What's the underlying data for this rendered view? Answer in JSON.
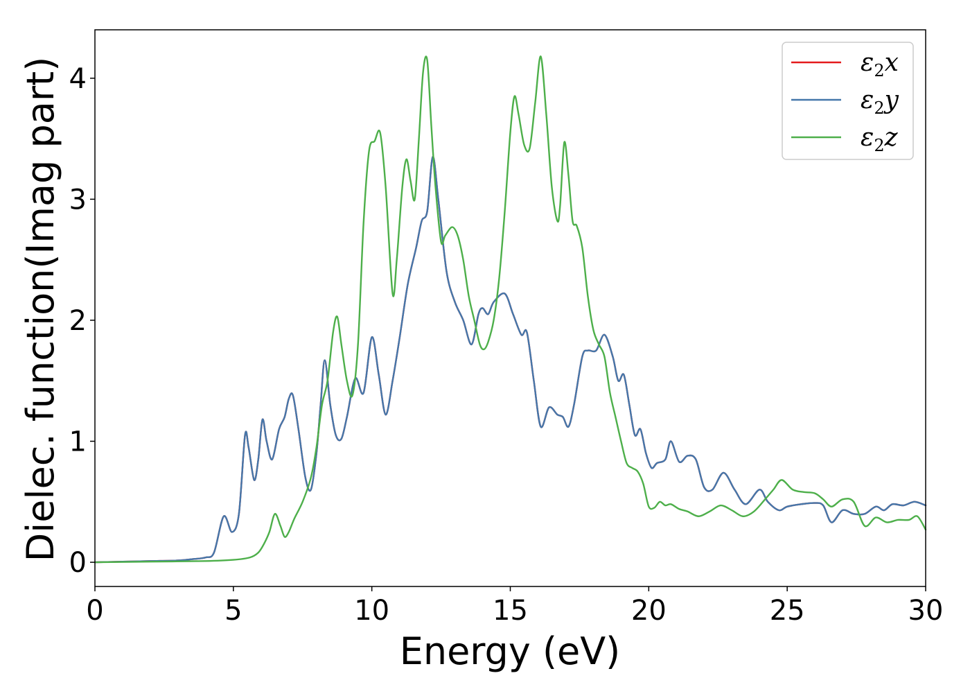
{
  "chart_data": {
    "type": "line",
    "title": "",
    "xlabel": "Energy (eV)",
    "ylabel": "Dielec. function(Imag part)",
    "xlim": [
      0,
      30
    ],
    "ylim": [
      -0.2,
      4.4
    ],
    "xticks": [
      0,
      5,
      10,
      15,
      20,
      25,
      30
    ],
    "yticks": [
      0,
      1,
      2,
      3,
      4
    ],
    "grid": false,
    "legend_position": "top-right",
    "series": [
      {
        "name": "ε2x",
        "legend_base": "ε",
        "legend_sub": "2",
        "legend_tail": "x",
        "color": "#e41a1c",
        "hidden_under": "ε2y",
        "x": [
          0,
          1,
          2,
          3,
          3.5,
          4,
          4.3,
          4.65,
          4.95,
          5.2,
          5.42,
          5.55,
          5.75,
          5.9,
          6.05,
          6.2,
          6.4,
          6.65,
          6.85,
          7.0,
          7.15,
          7.35,
          7.6,
          7.8,
          8.0,
          8.15,
          8.3,
          8.5,
          8.7,
          8.9,
          9.1,
          9.4,
          9.7,
          10.0,
          10.25,
          10.5,
          10.75,
          11.0,
          11.3,
          11.6,
          11.8,
          12.0,
          12.2,
          12.4,
          12.7,
          13.0,
          13.3,
          13.6,
          13.85,
          14.0,
          14.2,
          14.4,
          14.8,
          15.1,
          15.4,
          15.6,
          15.85,
          16.1,
          16.4,
          16.7,
          16.9,
          17.1,
          17.3,
          17.6,
          17.8,
          18.1,
          18.4,
          18.7,
          18.9,
          19.1,
          19.3,
          19.5,
          19.7,
          19.9,
          20.1,
          20.3,
          20.6,
          20.8,
          21.1,
          21.4,
          21.7,
          22.0,
          22.3,
          22.7,
          23.1,
          23.5,
          24.0,
          24.3,
          24.7,
          25.0,
          25.5,
          26.0,
          26.3,
          26.6,
          27.0,
          27.4,
          27.8,
          28.2,
          28.5,
          28.8,
          29.2,
          29.6,
          30.0
        ],
        "y": [
          0.0,
          0.005,
          0.01,
          0.015,
          0.025,
          0.04,
          0.08,
          0.38,
          0.25,
          0.4,
          1.05,
          0.95,
          0.68,
          0.85,
          1.18,
          1.0,
          0.85,
          1.1,
          1.2,
          1.35,
          1.38,
          1.1,
          0.7,
          0.6,
          0.9,
          1.3,
          1.67,
          1.3,
          1.05,
          1.02,
          1.2,
          1.52,
          1.4,
          1.86,
          1.55,
          1.22,
          1.5,
          1.85,
          2.3,
          2.6,
          2.82,
          2.9,
          3.35,
          3.0,
          2.4,
          2.15,
          2.0,
          1.8,
          2.05,
          2.1,
          2.05,
          2.15,
          2.22,
          2.05,
          1.88,
          1.9,
          1.5,
          1.12,
          1.28,
          1.22,
          1.2,
          1.12,
          1.3,
          1.7,
          1.75,
          1.75,
          1.88,
          1.7,
          1.5,
          1.55,
          1.3,
          1.05,
          1.1,
          0.9,
          0.78,
          0.82,
          0.85,
          1.0,
          0.83,
          0.88,
          0.85,
          0.62,
          0.6,
          0.74,
          0.6,
          0.48,
          0.6,
          0.5,
          0.43,
          0.46,
          0.48,
          0.49,
          0.47,
          0.33,
          0.43,
          0.4,
          0.4,
          0.46,
          0.43,
          0.48,
          0.47,
          0.5,
          0.47
        ]
      },
      {
        "name": "ε2y",
        "legend_base": "ε",
        "legend_sub": "2",
        "legend_tail": "y",
        "color": "#4477aa",
        "x": [
          0,
          1,
          2,
          3,
          3.5,
          4,
          4.3,
          4.65,
          4.95,
          5.2,
          5.42,
          5.55,
          5.75,
          5.9,
          6.05,
          6.2,
          6.4,
          6.65,
          6.85,
          7.0,
          7.15,
          7.35,
          7.6,
          7.8,
          8.0,
          8.15,
          8.3,
          8.5,
          8.7,
          8.9,
          9.1,
          9.4,
          9.7,
          10.0,
          10.25,
          10.5,
          10.75,
          11.0,
          11.3,
          11.6,
          11.8,
          12.0,
          12.2,
          12.4,
          12.7,
          13.0,
          13.3,
          13.6,
          13.85,
          14.0,
          14.2,
          14.4,
          14.8,
          15.1,
          15.4,
          15.6,
          15.85,
          16.1,
          16.4,
          16.7,
          16.9,
          17.1,
          17.3,
          17.6,
          17.8,
          18.1,
          18.4,
          18.7,
          18.9,
          19.1,
          19.3,
          19.5,
          19.7,
          19.9,
          20.1,
          20.3,
          20.6,
          20.8,
          21.1,
          21.4,
          21.7,
          22.0,
          22.3,
          22.7,
          23.1,
          23.5,
          24.0,
          24.3,
          24.7,
          25.0,
          25.5,
          26.0,
          26.3,
          26.6,
          27.0,
          27.4,
          27.8,
          28.2,
          28.5,
          28.8,
          29.2,
          29.6,
          30.0
        ],
        "y": [
          0.0,
          0.005,
          0.01,
          0.015,
          0.025,
          0.04,
          0.08,
          0.38,
          0.25,
          0.4,
          1.05,
          0.95,
          0.68,
          0.85,
          1.18,
          1.0,
          0.85,
          1.1,
          1.2,
          1.35,
          1.38,
          1.1,
          0.7,
          0.6,
          0.9,
          1.3,
          1.67,
          1.3,
          1.05,
          1.02,
          1.2,
          1.52,
          1.4,
          1.86,
          1.55,
          1.22,
          1.5,
          1.85,
          2.3,
          2.6,
          2.82,
          2.9,
          3.35,
          3.0,
          2.4,
          2.15,
          2.0,
          1.8,
          2.05,
          2.1,
          2.05,
          2.15,
          2.22,
          2.05,
          1.88,
          1.9,
          1.5,
          1.12,
          1.28,
          1.22,
          1.2,
          1.12,
          1.3,
          1.7,
          1.75,
          1.75,
          1.88,
          1.7,
          1.5,
          1.55,
          1.3,
          1.05,
          1.1,
          0.9,
          0.78,
          0.82,
          0.85,
          1.0,
          0.83,
          0.88,
          0.85,
          0.62,
          0.6,
          0.74,
          0.6,
          0.48,
          0.6,
          0.5,
          0.43,
          0.46,
          0.48,
          0.49,
          0.47,
          0.33,
          0.43,
          0.4,
          0.4,
          0.46,
          0.43,
          0.48,
          0.47,
          0.5,
          0.47
        ]
      },
      {
        "name": "ε2z",
        "legend_base": "ε",
        "legend_sub": "2",
        "legend_tail": "z",
        "color": "#4daf4a",
        "x": [
          0,
          2,
          4,
          5,
          5.6,
          5.9,
          6.1,
          6.3,
          6.5,
          6.7,
          6.85,
          7.0,
          7.2,
          7.5,
          7.8,
          8.0,
          8.2,
          8.4,
          8.6,
          8.75,
          8.9,
          9.1,
          9.3,
          9.5,
          9.7,
          9.9,
          10.1,
          10.3,
          10.5,
          10.75,
          10.9,
          11.1,
          11.25,
          11.4,
          11.55,
          11.7,
          11.85,
          12.0,
          12.15,
          12.3,
          12.5,
          12.65,
          12.9,
          13.1,
          13.3,
          13.5,
          13.7,
          13.9,
          14.05,
          14.2,
          14.4,
          14.6,
          14.8,
          15.0,
          15.15,
          15.3,
          15.5,
          15.7,
          15.9,
          16.1,
          16.3,
          16.5,
          16.7,
          16.8,
          16.95,
          17.1,
          17.25,
          17.4,
          17.6,
          17.8,
          18.0,
          18.2,
          18.4,
          18.6,
          18.8,
          19.0,
          19.2,
          19.4,
          19.6,
          19.8,
          20.0,
          20.2,
          20.4,
          20.6,
          20.8,
          21.1,
          21.4,
          21.8,
          22.2,
          22.6,
          23.0,
          23.4,
          23.8,
          24.2,
          24.5,
          24.8,
          25.2,
          25.6,
          26.0,
          26.3,
          26.6,
          27.0,
          27.4,
          27.8,
          28.2,
          28.6,
          29.0,
          29.4,
          29.7,
          30.0
        ],
        "y": [
          0.0,
          0.005,
          0.01,
          0.02,
          0.04,
          0.08,
          0.15,
          0.25,
          0.4,
          0.3,
          0.21,
          0.25,
          0.36,
          0.5,
          0.7,
          0.95,
          1.3,
          1.5,
          1.9,
          2.03,
          1.8,
          1.5,
          1.38,
          1.8,
          2.8,
          3.4,
          3.48,
          3.55,
          3.1,
          2.22,
          2.5,
          3.1,
          3.33,
          3.15,
          3.0,
          3.5,
          4.05,
          4.15,
          3.6,
          3.1,
          2.65,
          2.7,
          2.77,
          2.7,
          2.5,
          2.2,
          2.0,
          1.8,
          1.76,
          1.82,
          2.0,
          2.35,
          2.9,
          3.55,
          3.85,
          3.7,
          3.45,
          3.42,
          3.8,
          4.18,
          3.7,
          3.1,
          2.82,
          2.95,
          3.47,
          3.2,
          2.82,
          2.78,
          2.6,
          2.2,
          1.92,
          1.8,
          1.7,
          1.4,
          1.2,
          1.0,
          0.82,
          0.78,
          0.75,
          0.65,
          0.46,
          0.45,
          0.5,
          0.47,
          0.48,
          0.44,
          0.42,
          0.38,
          0.42,
          0.47,
          0.43,
          0.38,
          0.42,
          0.52,
          0.6,
          0.68,
          0.6,
          0.58,
          0.57,
          0.52,
          0.46,
          0.52,
          0.5,
          0.3,
          0.37,
          0.33,
          0.35,
          0.35,
          0.38,
          0.27
        ]
      }
    ]
  }
}
